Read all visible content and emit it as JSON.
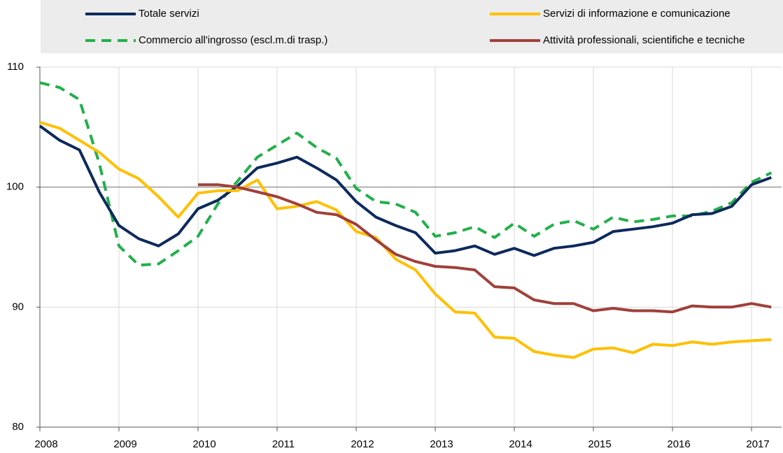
{
  "chart_data": {
    "type": "line",
    "x": [
      2008,
      2008.25,
      2008.5,
      2008.75,
      2009,
      2009.25,
      2009.5,
      2009.75,
      2010,
      2010.25,
      2010.5,
      2010.75,
      2011,
      2011.25,
      2011.5,
      2011.75,
      2012,
      2012.25,
      2012.5,
      2012.75,
      2013,
      2013.25,
      2013.5,
      2013.75,
      2014,
      2014.25,
      2014.5,
      2014.75,
      2015,
      2015.25,
      2015.5,
      2015.75,
      2016,
      2016.25,
      2016.5,
      2016.75,
      2017,
      2017.25
    ],
    "series": [
      {
        "name": "Totale servizi",
        "color": "#0d2a5c",
        "dashed": false,
        "values": [
          105.1,
          103.9,
          103.1,
          99.6,
          96.8,
          95.7,
          95.1,
          96.1,
          98.2,
          98.9,
          100.1,
          101.6,
          102.0,
          102.5,
          101.6,
          100.6,
          98.8,
          97.5,
          96.8,
          96.2,
          94.5,
          94.7,
          95.1,
          94.4,
          94.9,
          94.3,
          94.9,
          95.1,
          95.4,
          96.3,
          96.5,
          96.7,
          97.0,
          97.7,
          97.8,
          98.4,
          100.2,
          100.8
        ]
      },
      {
        "name": "Servizi di informazione e comunicazione",
        "color": "#ffc000",
        "dashed": false,
        "values": [
          105.4,
          104.9,
          103.9,
          102.9,
          101.5,
          100.7,
          99.2,
          97.5,
          99.5,
          99.7,
          99.7,
          100.6,
          98.2,
          98.4,
          98.8,
          98.1,
          96.3,
          95.8,
          94.0,
          93.1,
          91.1,
          89.6,
          89.5,
          87.5,
          87.4,
          86.3,
          86.0,
          85.8,
          86.5,
          86.6,
          86.2,
          86.9,
          86.8,
          87.1,
          86.9,
          87.1,
          87.2,
          87.3
        ]
      },
      {
        "name": "Commercio all'ingrosso (escl.m.di trasp.)",
        "color": "#22b04b",
        "dashed": true,
        "values": [
          108.7,
          108.3,
          107.3,
          102.0,
          95.1,
          93.5,
          93.6,
          94.7,
          95.9,
          98.6,
          100.5,
          102.5,
          103.5,
          104.5,
          103.3,
          102.4,
          99.9,
          98.8,
          98.6,
          97.9,
          95.9,
          96.2,
          96.7,
          95.8,
          97.0,
          95.9,
          96.9,
          97.2,
          96.5,
          97.5,
          97.1,
          97.3,
          97.6,
          97.6,
          98.0,
          98.7,
          100.4,
          101.2
        ]
      },
      {
        "name": "Attività professionali, scientifiche e tecniche",
        "color": "#a0403a",
        "dashed": false,
        "values": [
          null,
          null,
          null,
          null,
          null,
          null,
          null,
          null,
          100.2,
          100.2,
          100.0,
          99.6,
          99.2,
          98.6,
          97.9,
          97.7,
          96.9,
          95.6,
          94.4,
          93.8,
          93.4,
          93.3,
          93.1,
          91.7,
          91.6,
          90.6,
          90.3,
          90.3,
          89.7,
          89.9,
          89.7,
          89.7,
          89.6,
          90.1,
          90.0,
          90.0,
          90.3,
          90.0
        ]
      }
    ],
    "xlim": [
      2008,
      2017.38
    ],
    "xticks": [
      2008,
      2009,
      2010,
      2011,
      2012,
      2013,
      2014,
      2015,
      2016,
      2017
    ],
    "ylim": [
      80,
      110
    ],
    "yticks": [
      80,
      90,
      100,
      110
    ],
    "reference_line": 100,
    "grid": true
  }
}
